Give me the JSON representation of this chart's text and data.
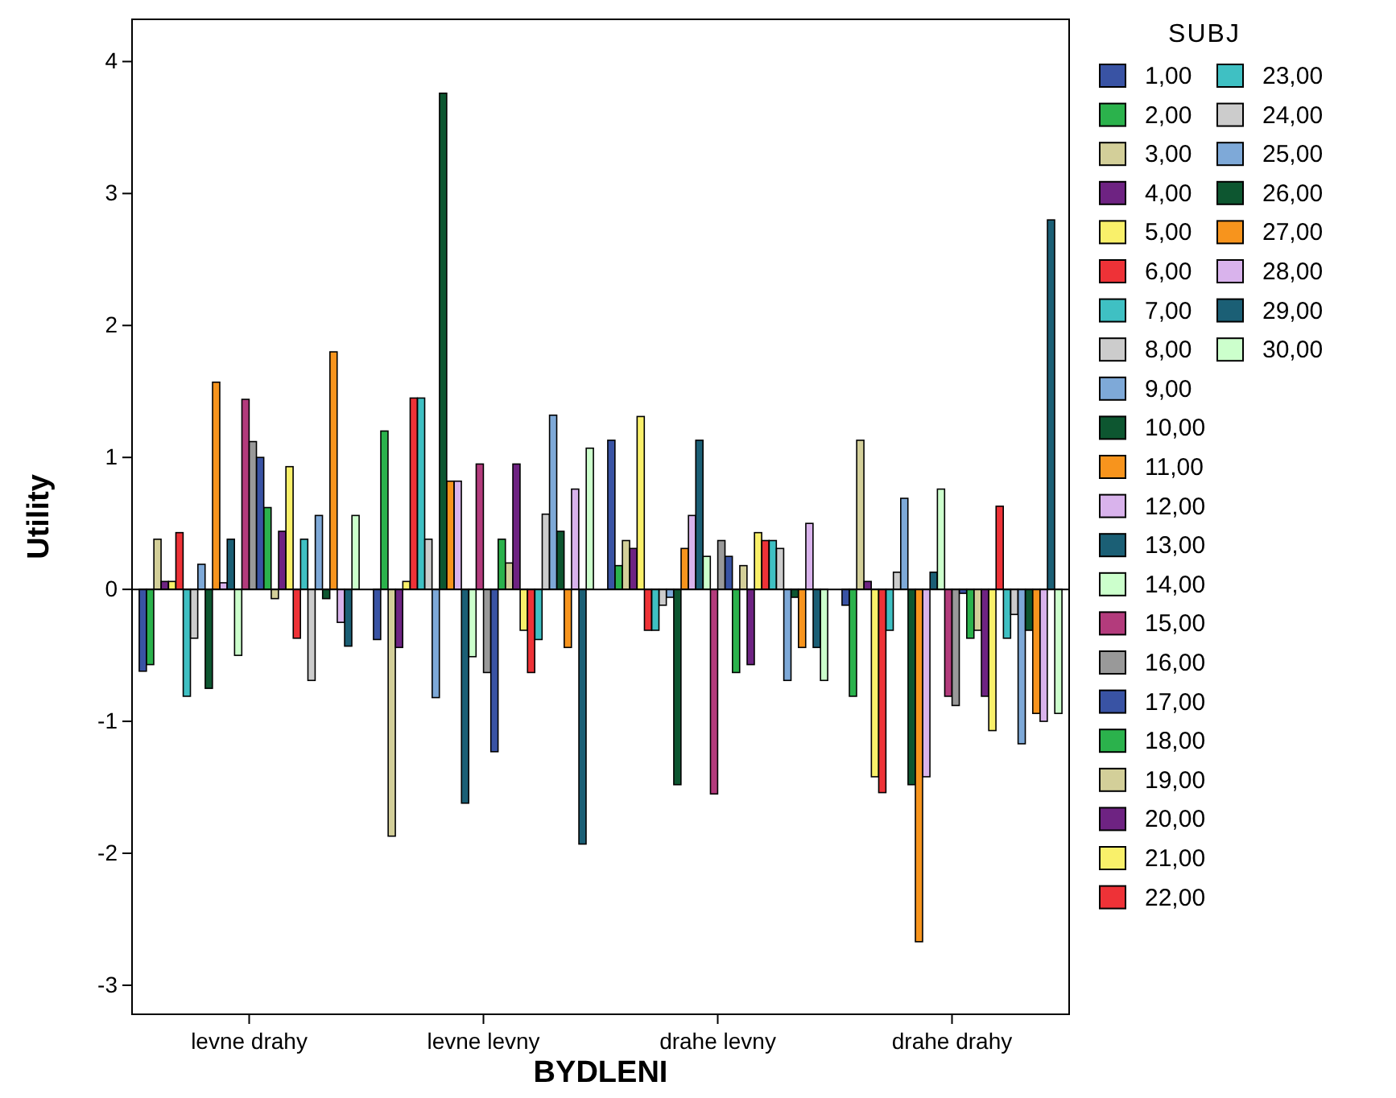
{
  "chart_data": {
    "type": "bar",
    "xlabel": "BYDLENI",
    "ylabel": "Utility",
    "legend_title": "SUBJ",
    "legend": "right",
    "ref_lines": [
      {
        "axis": "y",
        "value": 0,
        "color": "#000000"
      }
    ],
    "categories": [
      "levne drahy",
      "levne levny",
      "drahe levny",
      "drahe drahy"
    ],
    "ylim": [
      -3.22,
      4.32
    ],
    "yticks": [
      -3,
      -2,
      -1,
      0,
      1,
      2,
      3,
      4
    ],
    "series": [
      {
        "name": "1,00",
        "color": "#3953a4",
        "values": [
          -0.62,
          -0.38,
          1.13,
          -0.12
        ]
      },
      {
        "name": "2,00",
        "color": "#2bb24c",
        "values": [
          -0.57,
          1.2,
          0.18,
          -0.81
        ]
      },
      {
        "name": "3,00",
        "color": "#d3cf99",
        "values": [
          0.38,
          -1.87,
          0.37,
          1.13
        ]
      },
      {
        "name": "4,00",
        "color": "#6e2382",
        "values": [
          0.06,
          -0.44,
          0.31,
          0.06
        ]
      },
      {
        "name": "5,00",
        "color": "#f9f06a",
        "values": [
          0.06,
          0.06,
          1.31,
          -1.42
        ]
      },
      {
        "name": "6,00",
        "color": "#ee3237",
        "values": [
          0.43,
          1.45,
          -0.31,
          -1.54
        ]
      },
      {
        "name": "7,00",
        "color": "#3fc0c3",
        "values": [
          -0.81,
          1.45,
          -0.31,
          -0.31
        ]
      },
      {
        "name": "8,00",
        "color": "#cccccc",
        "values": [
          -0.37,
          0.38,
          -0.12,
          0.13
        ]
      },
      {
        "name": "9,00",
        "color": "#7ea9d8",
        "values": [
          0.19,
          -0.82,
          -0.06,
          0.69
        ]
      },
      {
        "name": "10,00",
        "color": "#0d5630",
        "values": [
          -0.75,
          3.76,
          -1.48,
          -1.48
        ]
      },
      {
        "name": "11,00",
        "color": "#f7941d",
        "values": [
          1.57,
          0.82,
          0.31,
          -2.67
        ]
      },
      {
        "name": "12,00",
        "color": "#d9b3ec",
        "values": [
          0.05,
          0.82,
          0.56,
          -1.42
        ]
      },
      {
        "name": "13,00",
        "color": "#1b5f75",
        "values": [
          0.38,
          -1.62,
          1.13,
          0.13
        ]
      },
      {
        "name": "14,00",
        "color": "#ccffcc",
        "values": [
          -0.5,
          -0.51,
          0.25,
          0.76
        ]
      },
      {
        "name": "15,00",
        "color": "#b33b7c",
        "values": [
          1.44,
          0.95,
          -1.55,
          -0.81
        ]
      },
      {
        "name": "16,00",
        "color": "#999999",
        "values": [
          1.12,
          -0.63,
          0.37,
          -0.88
        ]
      },
      {
        "name": "17,00",
        "color": "#3953a4",
        "values": [
          1.0,
          -1.23,
          0.25,
          -0.03
        ]
      },
      {
        "name": "18,00",
        "color": "#2bb24c",
        "values": [
          0.62,
          0.38,
          -0.63,
          -0.37
        ]
      },
      {
        "name": "19,00",
        "color": "#d3cf99",
        "values": [
          -0.07,
          0.2,
          0.18,
          -0.31
        ]
      },
      {
        "name": "20,00",
        "color": "#6e2382",
        "values": [
          0.44,
          0.95,
          -0.57,
          -0.81
        ]
      },
      {
        "name": "21,00",
        "color": "#f9f06a",
        "values": [
          0.93,
          -0.31,
          0.43,
          -1.07
        ]
      },
      {
        "name": "22,00",
        "color": "#ee3237",
        "values": [
          -0.37,
          -0.63,
          0.37,
          0.63
        ]
      },
      {
        "name": "23,00",
        "color": "#3fc0c3",
        "values": [
          0.38,
          -0.38,
          0.37,
          -0.37
        ]
      },
      {
        "name": "24,00",
        "color": "#cccccc",
        "values": [
          -0.69,
          0.57,
          0.31,
          -0.19
        ]
      },
      {
        "name": "25,00",
        "color": "#7ea9d8",
        "values": [
          0.56,
          1.32,
          -0.69,
          -1.17
        ]
      },
      {
        "name": "26,00",
        "color": "#0d5630",
        "values": [
          -0.07,
          0.44,
          -0.06,
          -0.31
        ]
      },
      {
        "name": "27,00",
        "color": "#f7941d",
        "values": [
          1.8,
          -0.44,
          -0.44,
          -0.94
        ]
      },
      {
        "name": "28,00",
        "color": "#d9b3ec",
        "values": [
          -0.25,
          0.76,
          0.5,
          -1.0
        ]
      },
      {
        "name": "29,00",
        "color": "#1b5f75",
        "values": [
          -0.43,
          -1.93,
          -0.44,
          2.8
        ]
      },
      {
        "name": "30,00",
        "color": "#ccffcc",
        "values": [
          0.56,
          1.07,
          -0.69,
          -0.94
        ]
      }
    ]
  }
}
